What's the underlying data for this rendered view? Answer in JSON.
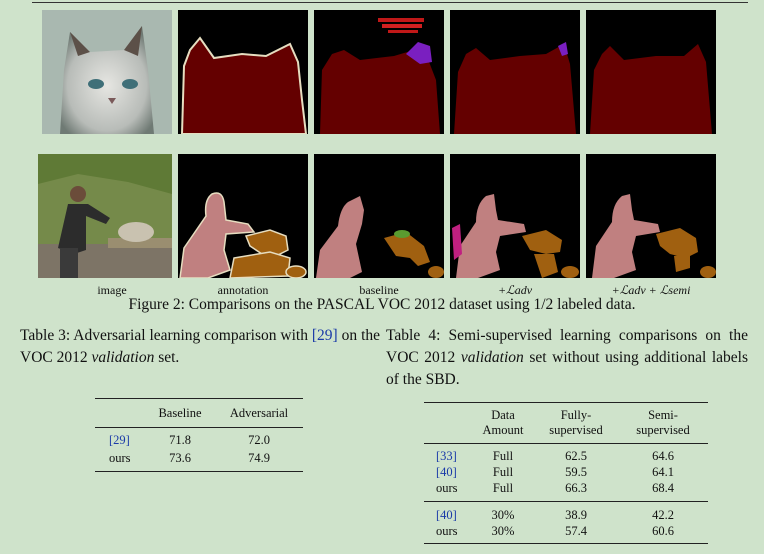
{
  "figure": {
    "column_labels": [
      "image",
      "annotation",
      "baseline",
      "+ℒadv",
      "+ℒadv + ℒsemi"
    ],
    "caption": "Figure 2: Comparisons on the PASCAL VOC 2012 dataset using 1/2 labeled data."
  },
  "table3": {
    "caption_parts": [
      "Table 3:  Adversarial learning comparison with ",
      "[29]",
      " on the VOC 2012 ",
      "validation",
      " set."
    ],
    "headers": [
      "",
      "Baseline",
      "Adversarial"
    ],
    "rows": [
      {
        "method": "[29]",
        "values": [
          "71.8",
          "72.0"
        ]
      },
      {
        "method": "ours",
        "values": [
          "73.6",
          "74.9"
        ]
      }
    ]
  },
  "table4": {
    "caption_parts": [
      "Table 4:  Semi-supervised learning comparisons on the VOC 2012 ",
      "validation",
      " set without using additional labels of the SBD."
    ],
    "headers": [
      "",
      "Data Amount",
      "Fully-supervised",
      "Semi-supervised"
    ],
    "header_lines": [
      [
        "Data",
        "Amount"
      ],
      [
        "Fully-",
        "supervised"
      ],
      [
        "Semi-",
        "supervised"
      ]
    ],
    "group1": [
      {
        "method": "[33]",
        "values": [
          "Full",
          "62.5",
          "64.6"
        ]
      },
      {
        "method": "[40]",
        "values": [
          "Full",
          "59.5",
          "64.1"
        ]
      },
      {
        "method": "ours",
        "values": [
          "Full",
          "66.3",
          "68.4"
        ]
      }
    ],
    "group2": [
      {
        "method": "[40]",
        "values": [
          "30%",
          "38.9",
          "42.2"
        ]
      },
      {
        "method": "ours",
        "values": [
          "30%",
          "57.4",
          "60.6"
        ]
      }
    ]
  },
  "colors": {
    "page_background": "#cfe3cb",
    "cat_class": "#640000",
    "person_class": "#c08080",
    "dog_class": "#a06010",
    "error_purple": "#7a1fc0",
    "cite_blue": "#1a3aa8"
  }
}
